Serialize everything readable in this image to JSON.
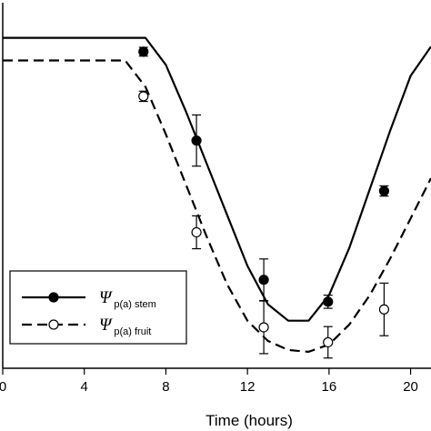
{
  "chart_data": {
    "type": "line",
    "xlabel": "Time (hours)",
    "ylabel": "",
    "xlim": [
      0,
      21
    ],
    "ylim": [
      0,
      1
    ],
    "x_ticks": [
      "0",
      "4",
      "8",
      "12",
      "16",
      "20"
    ],
    "x_tick_values": [
      0,
      4,
      8,
      12,
      16,
      20
    ],
    "grid": false,
    "legend_position": "bottom-left",
    "series": [
      {
        "key": "stem",
        "legend_symbol": "Ψ",
        "legend_subscript": "p(a) stem",
        "line_style": "solid",
        "marker": "filled-circle",
        "model": [
          [
            0,
            0.904
          ],
          [
            7,
            0.904
          ],
          [
            8,
            0.83
          ],
          [
            9,
            0.7
          ],
          [
            10,
            0.56
          ],
          [
            11,
            0.42
          ],
          [
            12,
            0.28
          ],
          [
            13,
            0.175
          ],
          [
            14,
            0.13
          ],
          [
            15,
            0.13
          ],
          [
            16,
            0.2
          ],
          [
            17,
            0.33
          ],
          [
            18,
            0.49
          ],
          [
            19,
            0.65
          ],
          [
            20,
            0.8
          ],
          [
            21,
            0.88
          ]
        ],
        "points": [
          {
            "x": 6.9,
            "y": 0.866,
            "err": 0.012
          },
          {
            "x": 9.5,
            "y": 0.623,
            "err": 0.07
          },
          {
            "x": 12.8,
            "y": 0.242,
            "err": 0.057
          },
          {
            "x": 15.95,
            "y": 0.182,
            "err": 0.018
          },
          {
            "x": 18.7,
            "y": 0.485,
            "err": 0.014
          }
        ]
      },
      {
        "key": "fruit",
        "legend_symbol": "Ψ",
        "legend_subscript": "p(a) fruit",
        "line_style": "dashed",
        "marker": "open-circle",
        "model": [
          [
            0,
            0.842
          ],
          [
            6,
            0.842
          ],
          [
            7,
            0.77
          ],
          [
            8,
            0.64
          ],
          [
            9,
            0.5
          ],
          [
            10,
            0.36
          ],
          [
            11,
            0.23
          ],
          [
            12,
            0.13
          ],
          [
            13,
            0.075
          ],
          [
            14,
            0.05
          ],
          [
            15,
            0.045
          ],
          [
            16,
            0.065
          ],
          [
            17,
            0.12
          ],
          [
            18,
            0.2
          ],
          [
            19,
            0.3
          ],
          [
            20,
            0.41
          ],
          [
            21,
            0.52
          ]
        ],
        "points": [
          {
            "x": 6.9,
            "y": 0.744,
            "err": 0.014
          },
          {
            "x": 9.5,
            "y": 0.372,
            "err": 0.045
          },
          {
            "x": 12.8,
            "y": 0.112,
            "err": 0.072
          },
          {
            "x": 15.95,
            "y": 0.071,
            "err": 0.043
          },
          {
            "x": 18.7,
            "y": 0.161,
            "err": 0.072
          }
        ]
      }
    ]
  }
}
